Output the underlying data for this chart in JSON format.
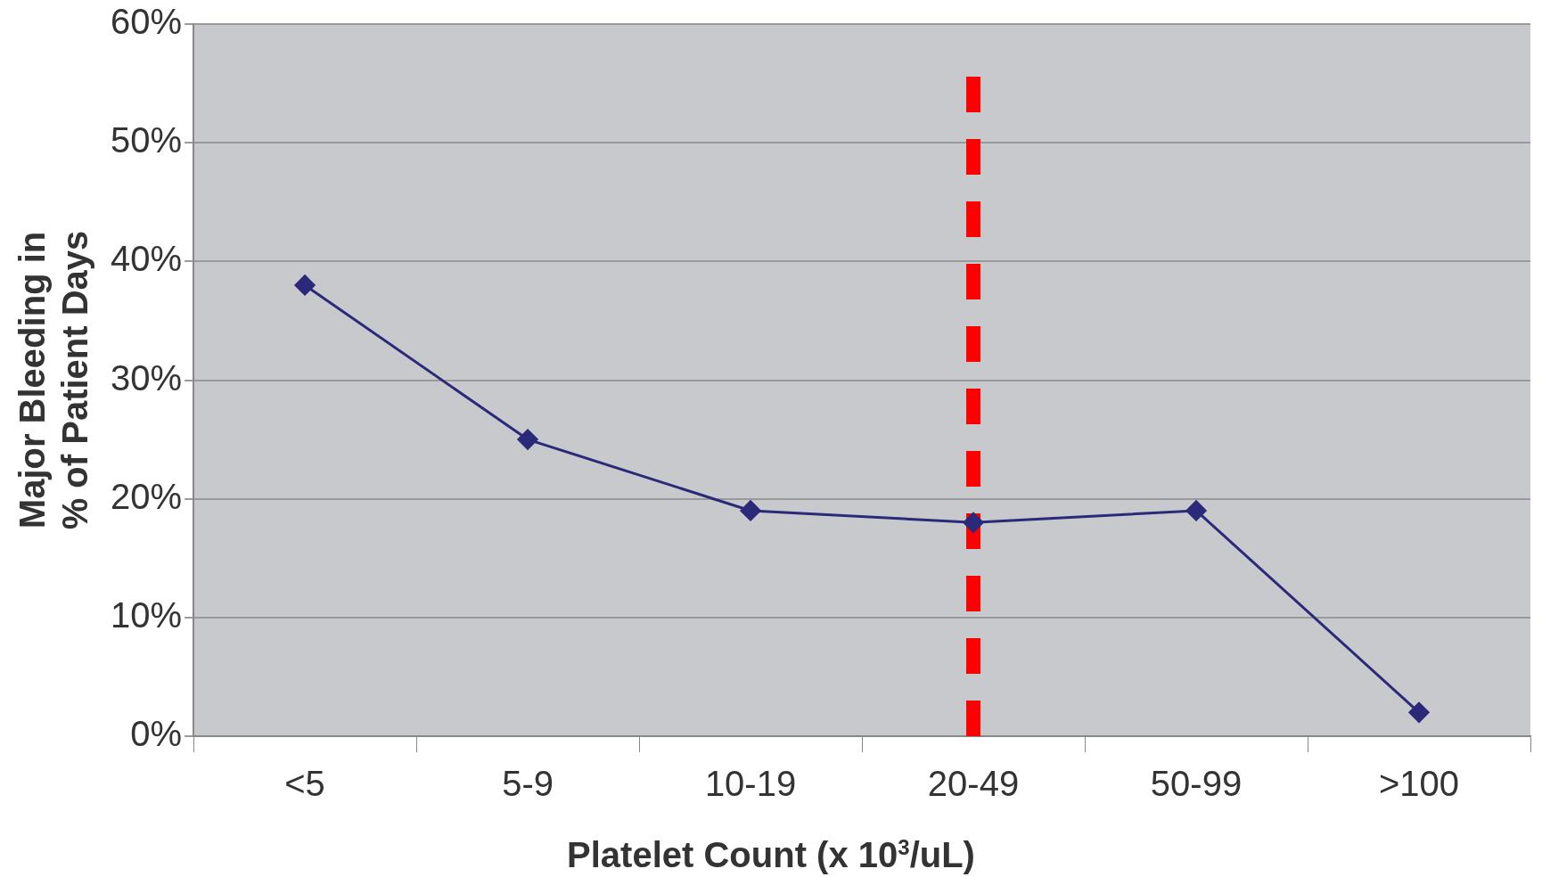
{
  "chart_data": {
    "type": "line",
    "xlabel": "Platelet Count (x 10$^{3}$/uL)",
    "ylabel": "Major Bleeding in\n% of Patient Days",
    "categories": [
      "<5",
      "5-9",
      "10-19",
      "20-49",
      "50-99",
      ">100"
    ],
    "series": [
      {
        "color": "#2b2a7a",
        "values": [
          0.38,
          0.25,
          0.19,
          0.18,
          0.19,
          0.02
        ]
      }
    ],
    "ylim": [
      0,
      0.6
    ],
    "yticks": [
      {
        "value": 0,
        "label": "0%"
      },
      {
        "value": 0.1,
        "label": "10%"
      },
      {
        "value": 0.2,
        "label": "20%"
      },
      {
        "value": 0.3,
        "label": "30%"
      },
      {
        "value": 0.4,
        "label": "40%"
      },
      {
        "value": 0.5,
        "label": "50%"
      },
      {
        "value": 0.6,
        "label": "60%"
      }
    ],
    "grid": "y",
    "legend": false,
    "marker": "diamond",
    "line_style": "solid",
    "ref_lines": [
      {
        "axis": "x",
        "value": "20-49",
        "color": "#ff0000",
        "line_style": "dashed"
      }
    ]
  }
}
